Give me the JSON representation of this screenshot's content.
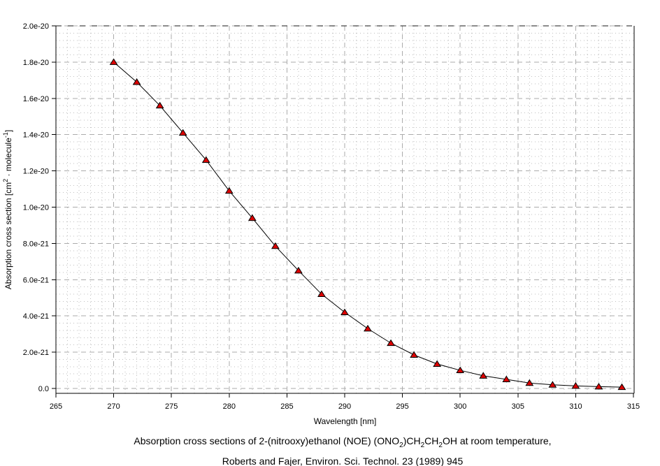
{
  "chart_data": {
    "type": "line",
    "title": "",
    "xlabel": "Wavelength [nm]",
    "ylabel": "Absorption cross section [cm² · molecule⁻¹]",
    "ylabel_segments": [
      {
        "text": "Absorption cross section [cm",
        "style": "normal"
      },
      {
        "text": "2",
        "style": "sup"
      },
      {
        "text": " · molecule",
        "style": "normal"
      },
      {
        "text": "-1",
        "style": "sup"
      },
      {
        "text": "]",
        "style": "normal"
      }
    ],
    "x": [
      270,
      272,
      274,
      276,
      278,
      280,
      282,
      284,
      286,
      288,
      290,
      292,
      294,
      296,
      298,
      300,
      302,
      304,
      306,
      308,
      310,
      312,
      314
    ],
    "y": [
      1.8e-20,
      1.69e-20,
      1.56e-20,
      1.41e-20,
      1.26e-20,
      1.09e-20,
      9.4e-21,
      7.85e-21,
      6.5e-21,
      5.2e-21,
      4.2e-21,
      3.3e-21,
      2.5e-21,
      1.85e-21,
      1.35e-21,
      1e-21,
      7e-22,
      5e-22,
      3e-22,
      2e-22,
      1.4e-22,
      1e-22,
      7e-23
    ],
    "xlim": [
      265,
      315
    ],
    "ylim": [
      0,
      2e-20
    ],
    "x_tick_values": [
      265,
      270,
      275,
      280,
      285,
      290,
      295,
      300,
      305,
      310,
      315
    ],
    "x_tick_labels": [
      "265",
      "270",
      "275",
      "280",
      "285",
      "290",
      "295",
      "300",
      "305",
      "310",
      "315"
    ],
    "y_tick_values": [
      2e-20,
      1.8e-20,
      1.6e-20,
      1.4e-20,
      1.2e-20,
      1e-20,
      8e-21,
      6e-21,
      4e-21,
      2e-21,
      0
    ],
    "y_tick_labels": [
      "2.0e-20",
      "1.8e-20",
      "1.6e-20",
      "1.4e-20",
      "1.2e-20",
      "1.0e-20",
      "8.0e-21",
      "6.0e-21",
      "4.0e-21",
      "2.0e-21",
      "0.0"
    ],
    "x_minor_step_nm": 1,
    "y_minor_step": 4e-22,
    "grid": "major-dashed-minor-dotted",
    "legend": "none",
    "marker": "triangle-up",
    "colors": {
      "marker_fill": "#dd0000",
      "marker_edge": "#000000",
      "line": "#000000",
      "grid_major": "#ababab",
      "grid_minor": "#bfbfbf",
      "text": "#000000",
      "background": "#ffffff"
    }
  },
  "caption": {
    "line1_segments": [
      {
        "text": "Absorption cross sections of 2-(nitrooxy)ethanol (NOE) (ONO",
        "style": "normal"
      },
      {
        "text": "2",
        "style": "sub"
      },
      {
        "text": ")CH",
        "style": "normal"
      },
      {
        "text": "2",
        "style": "sub"
      },
      {
        "text": "CH",
        "style": "normal"
      },
      {
        "text": "2",
        "style": "sub"
      },
      {
        "text": "OH at room temperature,",
        "style": "normal"
      }
    ],
    "line1_plain": "Absorption cross sections of 2-(nitrooxy)ethanol (NOE) (ONO₂)CH₂CH₂OH at room temperature,",
    "line2": "Roberts and Fajer, Environ. Sci. Technol. 23 (1989) 945"
  }
}
